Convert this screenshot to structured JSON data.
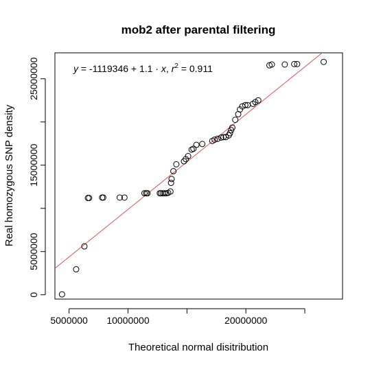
{
  "chart_data": {
    "type": "scatter",
    "title": "mob2 after parental filtering",
    "xlabel": "Theoretical normal disitribution",
    "ylabel": "Real homozygous SNP density",
    "xlim": [
      3800000,
      28200000
    ],
    "ylim": [
      -500000,
      28000000
    ],
    "x_ticks": [
      5000000,
      10000000,
      15000000,
      20000000,
      25000000
    ],
    "x_tick_labels": [
      "5000000",
      "10000000",
      "",
      "20000000",
      ""
    ],
    "y_ticks": [
      0,
      5000000,
      10000000,
      15000000,
      20000000,
      25000000
    ],
    "y_tick_labels": [
      "0",
      "5000000",
      "",
      "15000000",
      "",
      "25000000"
    ],
    "grid": false,
    "fit_line": {
      "intercept": -1119346,
      "slope": 1.1,
      "r2": 0.911,
      "color": "#d9534f"
    },
    "annotation": {
      "y_var": "y",
      "equals": " = -1119346 + 1.1 · ",
      "x_var": "x",
      "comma": ",  ",
      "r_var": "r",
      "sup": "2",
      "r2_text": " = 0.911"
    },
    "points": [
      [
        4400000,
        50000
      ],
      [
        5600000,
        2950000
      ],
      [
        6300000,
        5600000
      ],
      [
        6600000,
        11200000
      ],
      [
        6700000,
        11200000
      ],
      [
        7800000,
        11250000
      ],
      [
        7900000,
        11250000
      ],
      [
        9300000,
        11250000
      ],
      [
        9700000,
        11250000
      ],
      [
        11400000,
        11750000
      ],
      [
        11550000,
        11750000
      ],
      [
        11650000,
        11750000
      ],
      [
        12700000,
        11750000
      ],
      [
        12800000,
        11750000
      ],
      [
        12950000,
        11750000
      ],
      [
        13100000,
        11750000
      ],
      [
        13250000,
        11750000
      ],
      [
        13400000,
        11800000
      ],
      [
        13600000,
        11950000
      ],
      [
        13650000,
        12950000
      ],
      [
        13700000,
        13400000
      ],
      [
        13850000,
        14300000
      ],
      [
        14100000,
        15100000
      ],
      [
        14750000,
        15450000
      ],
      [
        14900000,
        15700000
      ],
      [
        15100000,
        16050000
      ],
      [
        15400000,
        16800000
      ],
      [
        15550000,
        16900000
      ],
      [
        15800000,
        17350000
      ],
      [
        16300000,
        17450000
      ],
      [
        17150000,
        17800000
      ],
      [
        17350000,
        17950000
      ],
      [
        17600000,
        18050000
      ],
      [
        17900000,
        18200000
      ],
      [
        18100000,
        18250000
      ],
      [
        18300000,
        18250000
      ],
      [
        18550000,
        18450000
      ],
      [
        18650000,
        18700000
      ],
      [
        18750000,
        19050000
      ],
      [
        18850000,
        19350000
      ],
      [
        19100000,
        20250000
      ],
      [
        19350000,
        20900000
      ],
      [
        19500000,
        21450000
      ],
      [
        19700000,
        21800000
      ],
      [
        19950000,
        21950000
      ],
      [
        20150000,
        21950000
      ],
      [
        20600000,
        22100000
      ],
      [
        20800000,
        22300000
      ],
      [
        21050000,
        22500000
      ],
      [
        22000000,
        26550000
      ],
      [
        22200000,
        26650000
      ],
      [
        23300000,
        26650000
      ],
      [
        24100000,
        26700000
      ],
      [
        24350000,
        26700000
      ],
      [
        26600000,
        26950000
      ]
    ]
  }
}
